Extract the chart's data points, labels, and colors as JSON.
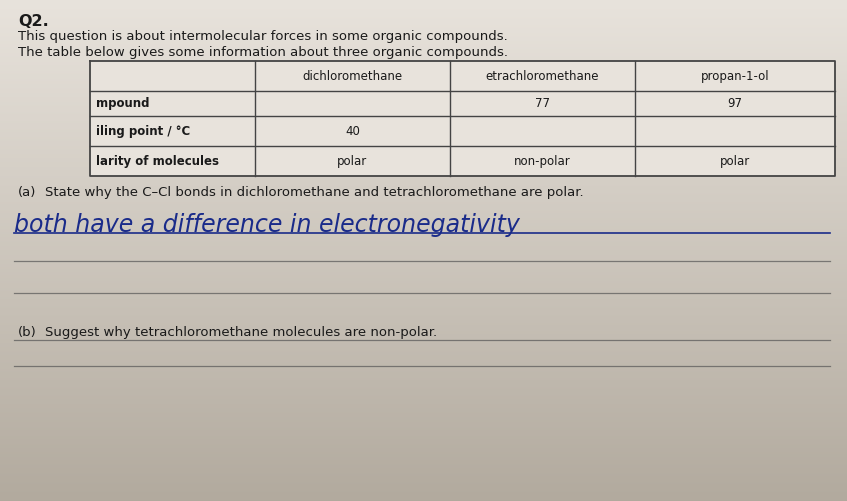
{
  "bg_color_top": "#e8e3dc",
  "bg_color_bottom": "#b8b0a4",
  "title_bold": "Q2.",
  "title_line1": "This question is about intermolecular forces in some organic compounds.",
  "title_line2": "The table below gives some information about three organic compounds.",
  "col_headers": [
    "",
    "dichloromethane",
    "etrachloromethane",
    "propan-1-ol"
  ],
  "row_labels": [
    "mpound",
    "iling point / °C",
    "larity of molecules"
  ],
  "cell_data": [
    [
      "",
      "77",
      "97"
    ],
    [
      "40",
      "",
      ""
    ],
    [
      "polar",
      "non-polar",
      "polar"
    ]
  ],
  "part_a_label": "(a)",
  "part_a_prompt": "State why the C–Cl bonds in dichloromethane and tetrachloromethane are polar.",
  "handwritten_line": "both have a difference in electronegativity",
  "part_b_label": "(b)",
  "part_b_prompt": "Suggest why tetrachloromethane molecules are non-polar.",
  "handwritten_color": "#1a2b8a",
  "text_color": "#1a1a1a",
  "table_line_color": "#444444",
  "line_color": "#555555"
}
